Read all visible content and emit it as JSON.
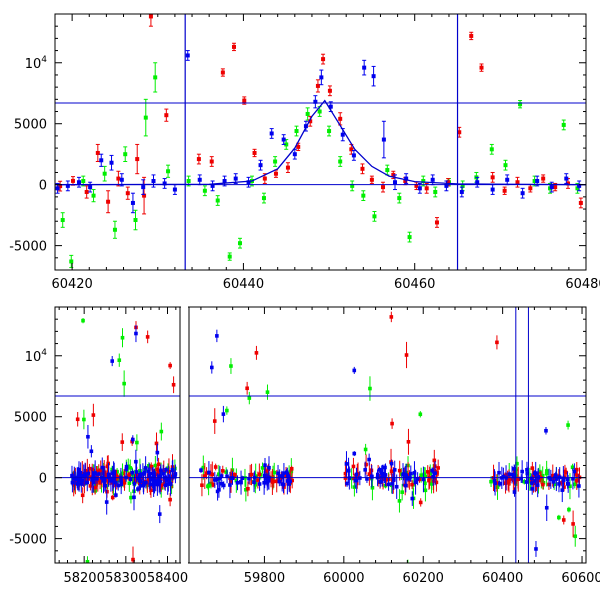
{
  "chart_data": [
    {
      "type": "scatter",
      "panel": "top",
      "title": "",
      "xlabel": "",
      "ylabel": "",
      "xlim": [
        60418,
        60480
      ],
      "ylim": [
        -7000,
        14000
      ],
      "y_log_exponent_label": {
        "base": "10",
        "exp": "4"
      },
      "x_ticks": [
        60420,
        60440,
        60460,
        60480
      ],
      "y_ticks": [
        -5000,
        0,
        5000,
        10000
      ],
      "grid": false,
      "colors": {
        "red": "#ee0000",
        "green": "#00ee00",
        "blue": "#0000ee",
        "line": "#0000cc"
      },
      "hlines": [
        0,
        6700
      ],
      "vlines": [
        60433.2,
        60465.0
      ],
      "model_curve": [
        [
          60418,
          0
        ],
        [
          60436,
          30
        ],
        [
          60441,
          300
        ],
        [
          60444,
          1300
        ],
        [
          60446,
          3000
        ],
        [
          60448,
          5600
        ],
        [
          60449.5,
          6900
        ],
        [
          60451,
          5200
        ],
        [
          60453,
          2900
        ],
        [
          60455,
          1500
        ],
        [
          60457,
          700
        ],
        [
          60460,
          250
        ],
        [
          60465,
          60
        ],
        [
          60480,
          0
        ]
      ],
      "series": [
        {
          "color": "red",
          "points": [
            [
              60418.6,
              -120,
              400
            ],
            [
              60420.1,
              310,
              350
            ],
            [
              60421.7,
              -600,
              500
            ],
            [
              60423.0,
              2600,
              700
            ],
            [
              60424.2,
              -1400,
              900
            ],
            [
              60425.4,
              500,
              600
            ],
            [
              60426.5,
              -700,
              500
            ],
            [
              60427.6,
              2100,
              1200
            ],
            [
              60428.4,
              -900,
              1500
            ],
            [
              60429.2,
              13800,
              800
            ],
            [
              60431.0,
              5700,
              500
            ],
            [
              60434.8,
              2100,
              400
            ],
            [
              60436.3,
              1900,
              400
            ],
            [
              60437.6,
              9200,
              300
            ],
            [
              60438.9,
              11300,
              300
            ],
            [
              60440.1,
              6900,
              300
            ],
            [
              60441.3,
              2600,
              300
            ],
            [
              60442.5,
              500,
              400
            ],
            [
              60443.8,
              900,
              300
            ],
            [
              60445.2,
              1400,
              400
            ],
            [
              60446.4,
              3100,
              300
            ],
            [
              60447.8,
              5200,
              400
            ],
            [
              60448.7,
              8100,
              500
            ],
            [
              60449.3,
              10300,
              400
            ],
            [
              60450.1,
              7700,
              400
            ],
            [
              60451.3,
              5400,
              500
            ],
            [
              60452.6,
              2900,
              400
            ],
            [
              60453.9,
              1300,
              400
            ],
            [
              60455.0,
              400,
              300
            ],
            [
              60456.3,
              -200,
              400
            ],
            [
              60457.5,
              800,
              300
            ],
            [
              60458.9,
              300,
              300
            ],
            [
              60460.2,
              -100,
              300
            ],
            [
              60461.4,
              -300,
              400
            ],
            [
              60462.6,
              -3100,
              400
            ],
            [
              60463.9,
              200,
              300
            ],
            [
              60465.2,
              4300,
              400
            ],
            [
              60466.6,
              12200,
              300
            ],
            [
              60467.8,
              9600,
              300
            ],
            [
              60469.1,
              600,
              400
            ],
            [
              60470.5,
              -500,
              300
            ],
            [
              60472.0,
              200,
              400
            ],
            [
              60473.5,
              -300,
              300
            ],
            [
              60475.0,
              500,
              300
            ],
            [
              60476.4,
              -200,
              300
            ],
            [
              60477.9,
              100,
              400
            ],
            [
              60479.4,
              -1500,
              400
            ]
          ]
        },
        {
          "color": "green",
          "points": [
            [
              60418.9,
              -2900,
              600
            ],
            [
              60419.9,
              -6300,
              500
            ],
            [
              60421.3,
              300,
              400
            ],
            [
              60422.5,
              -900,
              500
            ],
            [
              60423.8,
              900,
              600
            ],
            [
              60425.0,
              -3700,
              700
            ],
            [
              60426.2,
              2500,
              600
            ],
            [
              60427.4,
              -2900,
              800
            ],
            [
              60428.6,
              5500,
              1500
            ],
            [
              60429.7,
              8800,
              1200
            ],
            [
              60431.2,
              1100,
              500
            ],
            [
              60433.6,
              300,
              400
            ],
            [
              60435.5,
              -500,
              400
            ],
            [
              60437.0,
              -1300,
              400
            ],
            [
              60438.4,
              -5900,
              300
            ],
            [
              60439.6,
              -4800,
              400
            ],
            [
              60441.0,
              300,
              400
            ],
            [
              60442.4,
              -1100,
              400
            ],
            [
              60443.7,
              1900,
              400
            ],
            [
              60445.0,
              3300,
              400
            ],
            [
              60446.2,
              4400,
              400
            ],
            [
              60447.5,
              5800,
              500
            ],
            [
              60448.9,
              6000,
              400
            ],
            [
              60450.0,
              4400,
              400
            ],
            [
              60451.3,
              1900,
              400
            ],
            [
              60452.7,
              -100,
              400
            ],
            [
              60454.0,
              -900,
              400
            ],
            [
              60455.3,
              -2600,
              400
            ],
            [
              60456.8,
              1200,
              400
            ],
            [
              60458.2,
              -1100,
              400
            ],
            [
              60459.4,
              -4300,
              400
            ],
            [
              60461.0,
              300,
              400
            ],
            [
              60462.4,
              -600,
              400
            ],
            [
              60464.0,
              200,
              300
            ],
            [
              60465.6,
              -100,
              400
            ],
            [
              60467.2,
              600,
              400
            ],
            [
              60469.0,
              2900,
              400
            ],
            [
              60470.6,
              1600,
              400
            ],
            [
              60472.3,
              6600,
              300
            ],
            [
              60474.0,
              300,
              400
            ],
            [
              60475.8,
              -300,
              400
            ],
            [
              60477.4,
              4900,
              400
            ],
            [
              60479.0,
              -300,
              400
            ]
          ]
        },
        {
          "color": "blue",
          "points": [
            [
              60418.3,
              -300,
              400
            ],
            [
              60419.5,
              -100,
              400
            ],
            [
              60420.8,
              200,
              400
            ],
            [
              60422.1,
              -200,
              400
            ],
            [
              60423.4,
              2000,
              500
            ],
            [
              60424.6,
              1800,
              600
            ],
            [
              60425.8,
              400,
              500
            ],
            [
              60427.1,
              -1500,
              800
            ],
            [
              60428.3,
              -200,
              600
            ],
            [
              60429.5,
              300,
              500
            ],
            [
              60430.8,
              100,
              400
            ],
            [
              60432.0,
              -400,
              400
            ],
            [
              60433.5,
              10600,
              400
            ],
            [
              60434.9,
              400,
              400
            ],
            [
              60436.4,
              -100,
              400
            ],
            [
              60437.8,
              300,
              400
            ],
            [
              60439.1,
              500,
              400
            ],
            [
              60440.6,
              200,
              400
            ],
            [
              60442.0,
              1600,
              400
            ],
            [
              60443.3,
              4200,
              400
            ],
            [
              60444.7,
              3700,
              400
            ],
            [
              60446.0,
              2500,
              400
            ],
            [
              60447.3,
              4800,
              400
            ],
            [
              60448.4,
              6800,
              500
            ],
            [
              60449.1,
              8800,
              600
            ],
            [
              60450.2,
              6400,
              400
            ],
            [
              60451.6,
              4100,
              500
            ],
            [
              60452.9,
              2400,
              400
            ],
            [
              60454.1,
              9600,
              600
            ],
            [
              60455.2,
              8900,
              800
            ],
            [
              60456.4,
              3700,
              1500
            ],
            [
              60457.7,
              200,
              600
            ],
            [
              60459.0,
              500,
              400
            ],
            [
              60460.6,
              -300,
              400
            ],
            [
              60462.1,
              400,
              400
            ],
            [
              60463.7,
              -100,
              400
            ],
            [
              60465.5,
              -600,
              400
            ],
            [
              60467.3,
              200,
              400
            ],
            [
              60469.1,
              -400,
              400
            ],
            [
              60470.8,
              400,
              400
            ],
            [
              60472.6,
              -700,
              400
            ],
            [
              60474.3,
              300,
              400
            ],
            [
              60476.0,
              -200,
              400
            ],
            [
              60477.7,
              500,
              400
            ],
            [
              60479.2,
              -100,
              400
            ]
          ]
        }
      ]
    },
    {
      "type": "scatter",
      "panel": "bottom",
      "title": "",
      "xlabel": "",
      "ylabel": "",
      "segments": [
        {
          "xlim": [
            58130,
            58430
          ],
          "x_ticks": [
            58200,
            58300,
            58400
          ]
        },
        {
          "xlim": [
            59610,
            60610
          ],
          "x_ticks": [
            59800,
            60000,
            60200,
            60400,
            60600
          ]
        }
      ],
      "ylim": [
        -7000,
        14000
      ],
      "y_log_exponent_label": {
        "base": "10",
        "exp": "4"
      },
      "y_ticks": [
        -5000,
        0,
        5000,
        10000
      ],
      "grid": false,
      "colors": {
        "red": "#ee0000",
        "green": "#00ee00",
        "blue": "#0000ee",
        "line": "#0000cc"
      },
      "hlines": [
        0,
        6700
      ],
      "vlines": [
        60433.2,
        60465.0
      ],
      "seasons": [
        [
          58170,
          58420
        ],
        [
          59640,
          59870
        ],
        [
          60000,
          60240
        ],
        [
          60370,
          60600
        ]
      ]
    }
  ]
}
